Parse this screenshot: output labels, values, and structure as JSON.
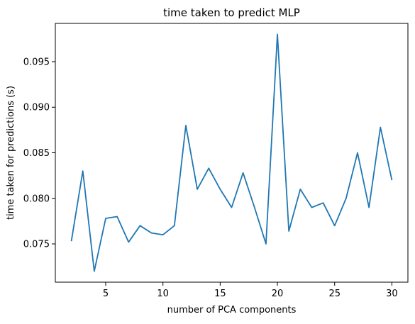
{
  "chart_data": {
    "type": "line",
    "title": "time taken to predict MLP",
    "xlabel": "number of PCA components",
    "ylabel": "time taken for predictions (s)",
    "xlim": [
      0.6,
      31.4
    ],
    "ylim": [
      0.0708,
      0.0992
    ],
    "xticks": [
      5,
      10,
      15,
      20,
      25,
      30
    ],
    "xtick_labels": [
      "5",
      "10",
      "15",
      "20",
      "25",
      "30"
    ],
    "yticks": [
      0.075,
      0.08,
      0.085,
      0.09,
      0.095
    ],
    "ytick_labels": [
      "0.075",
      "0.080",
      "0.085",
      "0.090",
      "0.095"
    ],
    "grid": false,
    "series": [
      {
        "color": "#1f77b4",
        "x": [
          2,
          3,
          4,
          5,
          6,
          7,
          8,
          9,
          10,
          11,
          12,
          13,
          14,
          15,
          16,
          17,
          18,
          19,
          20,
          21,
          22,
          23,
          24,
          25,
          26,
          27,
          28,
          29,
          30
        ],
        "y": [
          0.0753,
          0.083,
          0.072,
          0.0778,
          0.078,
          0.0752,
          0.077,
          0.0762,
          0.076,
          0.077,
          0.088,
          0.081,
          0.0833,
          0.081,
          0.079,
          0.0828,
          0.079,
          0.075,
          0.098,
          0.0764,
          0.081,
          0.079,
          0.0795,
          0.077,
          0.08,
          0.085,
          0.079,
          0.0878,
          0.082
        ]
      }
    ]
  }
}
